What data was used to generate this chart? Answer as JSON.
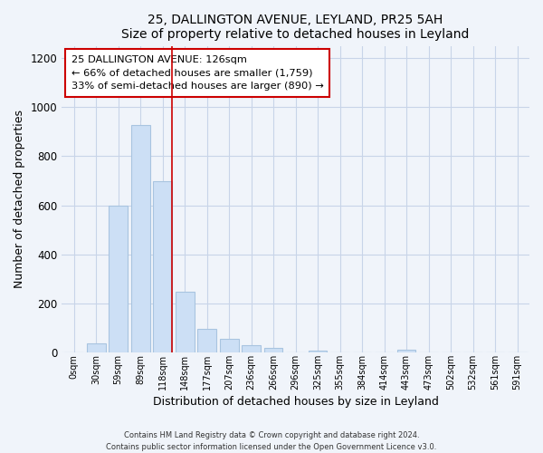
{
  "title1": "25, DALLINGTON AVENUE, LEYLAND, PR25 5AH",
  "title2": "Size of property relative to detached houses in Leyland",
  "xlabel": "Distribution of detached houses by size in Leyland",
  "ylabel": "Number of detached properties",
  "bar_labels": [
    "0sqm",
    "30sqm",
    "59sqm",
    "89sqm",
    "118sqm",
    "148sqm",
    "177sqm",
    "207sqm",
    "236sqm",
    "266sqm",
    "296sqm",
    "325sqm",
    "355sqm",
    "384sqm",
    "414sqm",
    "443sqm",
    "473sqm",
    "502sqm",
    "532sqm",
    "561sqm",
    "591sqm"
  ],
  "bar_values": [
    0,
    37,
    598,
    928,
    700,
    247,
    96,
    55,
    30,
    18,
    0,
    10,
    0,
    0,
    0,
    12,
    0,
    0,
    0,
    0,
    0
  ],
  "bar_color": "#ccdff5",
  "bar_edge_color": "#a8c4e0",
  "vline_color": "#cc0000",
  "annotation_title": "25 DALLINGTON AVENUE: 126sqm",
  "annotation_line1": "← 66% of detached houses are smaller (1,759)",
  "annotation_line2": "33% of semi-detached houses are larger (890) →",
  "annotation_box_color": "#ffffff",
  "annotation_box_edge": "#cc0000",
  "ylim": [
    0,
    1250
  ],
  "yticks": [
    0,
    200,
    400,
    600,
    800,
    1000,
    1200
  ],
  "footer1": "Contains HM Land Registry data © Crown copyright and database right 2024.",
  "footer2": "Contains public sector information licensed under the Open Government Licence v3.0.",
  "bg_color": "#f0f4fa"
}
